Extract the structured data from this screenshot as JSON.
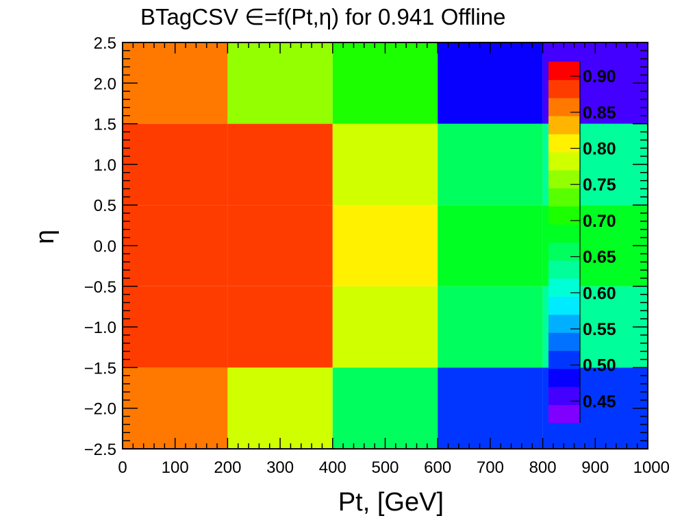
{
  "chart_data": {
    "type": "heatmap",
    "title": "BTagCSV ∈=f(Pt,η) for 0.941 Offline",
    "xlabel": "Pt, [GeV]",
    "ylabel": "η",
    "xlim": [
      0,
      1000
    ],
    "ylim": [
      -2.5,
      2.5
    ],
    "x_edges": [
      0,
      200,
      400,
      600,
      800,
      1000
    ],
    "y_edges": [
      -2.5,
      -1.5,
      -0.5,
      0.5,
      1.5,
      2.5
    ],
    "x_tick_labels": [
      "0",
      "100",
      "200",
      "300",
      "400",
      "500",
      "600",
      "700",
      "800",
      "900",
      "1000"
    ],
    "y_tick_labels": [
      "−2.5",
      "−2.0",
      "−1.5",
      "−1.0",
      "−0.5",
      "0.0",
      "0.5",
      "1.0",
      "1.5",
      "2.0",
      "2.5"
    ],
    "values": [
      [
        0.85,
        0.79,
        0.66,
        0.51,
        0.5
      ],
      [
        0.88,
        0.87,
        0.79,
        0.66,
        0.62
      ],
      [
        0.89,
        0.89,
        0.8,
        0.69,
        0.69
      ],
      [
        0.89,
        0.87,
        0.79,
        0.66,
        0.62
      ],
      [
        0.85,
        0.76,
        0.7,
        0.48,
        0.46
      ]
    ],
    "zlim": [
      0.42,
      0.92
    ],
    "color_levels": 20,
    "colorbar_labels": [
      "0.45",
      "0.50",
      "0.55",
      "0.60",
      "0.65",
      "0.70",
      "0.75",
      "0.80",
      "0.85",
      "0.90"
    ],
    "grid": false
  }
}
